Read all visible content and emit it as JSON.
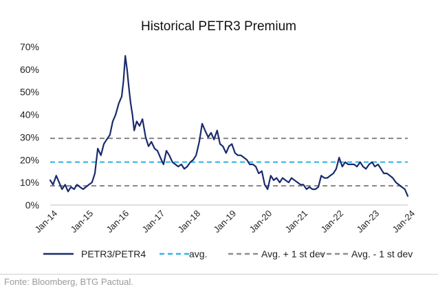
{
  "colors": {
    "series": "#1a2a6c",
    "avg": "#2fb5e8",
    "band": "#8c8c8c"
  },
  "source_note": "Fonte: Bloomberg, BTG Pactual.",
  "chart_data": {
    "type": "line",
    "title": "Historical PETR3 Premium",
    "xlabel": "",
    "ylabel": "",
    "x_ticks": [
      "Jan-14",
      "Jan-15",
      "Jan-16",
      "Jan-17",
      "Jan-18",
      "Jan-19",
      "Jan-20",
      "Jan-21",
      "Jan-22",
      "Jan-23",
      "Jan-24"
    ],
    "y_ticks": [
      "0%",
      "10%",
      "20%",
      "30%",
      "40%",
      "50%",
      "60%",
      "70%"
    ],
    "ylim": [
      0,
      70
    ],
    "xlim": [
      2014.0,
      2024.0
    ],
    "grid": false,
    "legend_position": "bottom",
    "series": [
      {
        "name": "PETR3/PETR4",
        "style": "solid",
        "x": [
          2014.0,
          2014.08,
          2014.17,
          2014.25,
          2014.33,
          2014.42,
          2014.5,
          2014.58,
          2014.67,
          2014.75,
          2014.83,
          2014.92,
          2015.0,
          2015.08,
          2015.17,
          2015.25,
          2015.33,
          2015.42,
          2015.5,
          2015.58,
          2015.67,
          2015.75,
          2015.83,
          2015.92,
          2016.0,
          2016.05,
          2016.1,
          2016.15,
          2016.2,
          2016.25,
          2016.3,
          2016.35,
          2016.42,
          2016.5,
          2016.58,
          2016.67,
          2016.75,
          2016.83,
          2016.92,
          2017.0,
          2017.08,
          2017.17,
          2017.25,
          2017.33,
          2017.42,
          2017.5,
          2017.58,
          2017.67,
          2017.75,
          2017.83,
          2017.92,
          2018.0,
          2018.08,
          2018.17,
          2018.25,
          2018.33,
          2018.42,
          2018.5,
          2018.58,
          2018.67,
          2018.75,
          2018.83,
          2018.92,
          2019.0,
          2019.08,
          2019.17,
          2019.25,
          2019.33,
          2019.42,
          2019.5,
          2019.58,
          2019.67,
          2019.75,
          2019.83,
          2019.92,
          2020.0,
          2020.08,
          2020.17,
          2020.25,
          2020.33,
          2020.42,
          2020.5,
          2020.58,
          2020.67,
          2020.75,
          2020.83,
          2020.92,
          2021.0,
          2021.08,
          2021.17,
          2021.25,
          2021.33,
          2021.42,
          2021.5,
          2021.58,
          2021.67,
          2021.75,
          2021.83,
          2021.92,
          2022.0,
          2022.08,
          2022.17,
          2022.25,
          2022.33,
          2022.42,
          2022.5,
          2022.58,
          2022.67,
          2022.75,
          2022.83,
          2022.92,
          2023.0,
          2023.08,
          2023.17,
          2023.25,
          2023.33,
          2023.42,
          2023.5,
          2023.58,
          2023.67,
          2023.75,
          2023.83,
          2023.92,
          2024.0
        ],
        "values": [
          11,
          9,
          13,
          10,
          7,
          9,
          6,
          8,
          7,
          9,
          8,
          7,
          8,
          9,
          10,
          14,
          25,
          22,
          27,
          29,
          31,
          37,
          40,
          45,
          48,
          55,
          66,
          60,
          52,
          45,
          40,
          33,
          37,
          35,
          38,
          30,
          26,
          28,
          25,
          24,
          21,
          18,
          24,
          22,
          19,
          18,
          17,
          18,
          16,
          17,
          19,
          20,
          22,
          28,
          36,
          33,
          30,
          32,
          29,
          33,
          27,
          26,
          23,
          26,
          27,
          23,
          22,
          22,
          21,
          20,
          18,
          18,
          17,
          14,
          15,
          9,
          7,
          13,
          11,
          12,
          10,
          12,
          11,
          10,
          12,
          11,
          10,
          9,
          9,
          7,
          8,
          7,
          7,
          8,
          13,
          12,
          12,
          13,
          14,
          16,
          21,
          17,
          19,
          18,
          18,
          18,
          17,
          19,
          17,
          16,
          18,
          19,
          17,
          18,
          16,
          14,
          14,
          13,
          12,
          10,
          9,
          8,
          7,
          4
        ]
      },
      {
        "name": "avg.",
        "style": "dashed",
        "x": [
          2014.0,
          2024.0
        ],
        "values": [
          19,
          19
        ]
      },
      {
        "name": "Avg. + 1 st dev",
        "style": "dashed",
        "x": [
          2014.0,
          2024.0
        ],
        "values": [
          29.5,
          29.5
        ]
      },
      {
        "name": "Avg. - 1 st dev",
        "style": "dashed",
        "x": [
          2014.0,
          2024.0
        ],
        "values": [
          8.5,
          8.5
        ]
      }
    ]
  }
}
